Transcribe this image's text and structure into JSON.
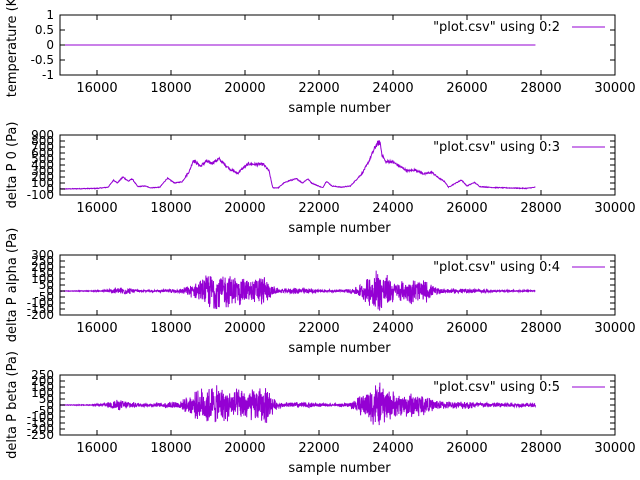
{
  "colors": {
    "series": "#9400d3",
    "frame": "#000000",
    "background": "#ffffff"
  },
  "chart_data": [
    {
      "type": "line",
      "xlabel": "sample number",
      "ylabel": "temperature (K)",
      "xlim": [
        15000,
        30000
      ],
      "ylim": [
        -1,
        1
      ],
      "x_ticks": [
        16000,
        18000,
        20000,
        22000,
        24000,
        26000,
        28000,
        30000
      ],
      "y_ticks": [
        -1,
        -0.5,
        0,
        0.5,
        1
      ],
      "legend_position": "top-right",
      "grid": false,
      "series": [
        {
          "name": "\"plot.csv\" using 0:2",
          "points": [
            [
              15000,
              0
            ],
            [
              27850,
              0
            ]
          ]
        }
      ]
    },
    {
      "type": "line",
      "xlabel": "sample number",
      "ylabel": "delta P 0 (Pa)",
      "xlim": [
        15000,
        30000
      ],
      "ylim": [
        -100,
        900
      ],
      "x_ticks": [
        16000,
        18000,
        20000,
        22000,
        24000,
        26000,
        28000,
        30000
      ],
      "y_ticks": [
        -100,
        0,
        100,
        200,
        300,
        400,
        500,
        600,
        700,
        800,
        900
      ],
      "legend_position": "top-right",
      "grid": false,
      "series": [
        {
          "name": "\"plot.csv\" using 0:3",
          "points": [
            [
              15000,
              0
            ],
            [
              16000,
              10
            ],
            [
              16300,
              30
            ],
            [
              16450,
              150
            ],
            [
              16550,
              100
            ],
            [
              16700,
              200
            ],
            [
              16850,
              130
            ],
            [
              16950,
              170
            ],
            [
              17100,
              40
            ],
            [
              17300,
              50
            ],
            [
              17450,
              20
            ],
            [
              17700,
              30
            ],
            [
              17900,
              180
            ],
            [
              18100,
              100
            ],
            [
              18300,
              120
            ],
            [
              18500,
              300
            ],
            [
              18600,
              480
            ],
            [
              18800,
              380
            ],
            [
              18950,
              460
            ],
            [
              19100,
              430
            ],
            [
              19300,
              500
            ],
            [
              19450,
              410
            ],
            [
              19600,
              330
            ],
            [
              19800,
              260
            ],
            [
              19950,
              350
            ],
            [
              20100,
              420
            ],
            [
              20300,
              410
            ],
            [
              20500,
              410
            ],
            [
              20650,
              300
            ],
            [
              20750,
              20
            ],
            [
              20900,
              20
            ],
            [
              21050,
              100
            ],
            [
              21200,
              140
            ],
            [
              21400,
              170
            ],
            [
              21550,
              100
            ],
            [
              21700,
              170
            ],
            [
              21800,
              100
            ],
            [
              21950,
              60
            ],
            [
              22100,
              20
            ],
            [
              22200,
              130
            ],
            [
              22350,
              50
            ],
            [
              22600,
              30
            ],
            [
              22850,
              50
            ],
            [
              23000,
              150
            ],
            [
              23150,
              250
            ],
            [
              23300,
              400
            ],
            [
              23450,
              600
            ],
            [
              23550,
              740
            ],
            [
              23650,
              780
            ],
            [
              23700,
              580
            ],
            [
              23800,
              450
            ],
            [
              23950,
              460
            ],
            [
              24050,
              430
            ],
            [
              24200,
              370
            ],
            [
              24400,
              300
            ],
            [
              24600,
              320
            ],
            [
              24850,
              250
            ],
            [
              25050,
              280
            ],
            [
              25200,
              200
            ],
            [
              25400,
              120
            ],
            [
              25500,
              30
            ],
            [
              25700,
              100
            ],
            [
              25850,
              150
            ],
            [
              26000,
              50
            ],
            [
              26200,
              110
            ],
            [
              26350,
              40
            ],
            [
              26700,
              25
            ],
            [
              27000,
              20
            ],
            [
              27300,
              15
            ],
            [
              27600,
              10
            ],
            [
              27850,
              30
            ]
          ]
        }
      ]
    },
    {
      "type": "line",
      "xlabel": "sample number",
      "ylabel": "delta P alpha (Pa)",
      "xlim": [
        15000,
        30000
      ],
      "ylim": [
        -200,
        300
      ],
      "x_ticks": [
        16000,
        18000,
        20000,
        22000,
        24000,
        26000,
        28000,
        30000
      ],
      "y_ticks": [
        -200,
        -150,
        -100,
        -50,
        0,
        50,
        100,
        150,
        200,
        250,
        300
      ],
      "legend_position": "top-right",
      "grid": false,
      "series": [
        {
          "name": "\"plot.csv\" using 0:4",
          "envelope": [
            [
              15000,
              3
            ],
            [
              15800,
              3
            ],
            [
              16200,
              8
            ],
            [
              16450,
              28
            ],
            [
              16700,
              40
            ],
            [
              16950,
              22
            ],
            [
              17200,
              8
            ],
            [
              17600,
              8
            ],
            [
              17900,
              18
            ],
            [
              18200,
              15
            ],
            [
              18500,
              50
            ],
            [
              18800,
              100
            ],
            [
              19000,
              160
            ],
            [
              19200,
              190
            ],
            [
              19400,
              160
            ],
            [
              19600,
              150
            ],
            [
              19900,
              130
            ],
            [
              20200,
              110
            ],
            [
              20500,
              150
            ],
            [
              20700,
              60
            ],
            [
              20900,
              18
            ],
            [
              21200,
              25
            ],
            [
              21500,
              35
            ],
            [
              21800,
              25
            ],
            [
              22100,
              12
            ],
            [
              22500,
              10
            ],
            [
              22800,
              18
            ],
            [
              23000,
              40
            ],
            [
              23200,
              80
            ],
            [
              23400,
              160
            ],
            [
              23550,
              220
            ],
            [
              23700,
              190
            ],
            [
              23900,
              130
            ],
            [
              24100,
              80
            ],
            [
              24300,
              100
            ],
            [
              24600,
              120
            ],
            [
              24900,
              100
            ],
            [
              25100,
              40
            ],
            [
              25400,
              20
            ],
            [
              25800,
              25
            ],
            [
              26100,
              20
            ],
            [
              26500,
              15
            ],
            [
              27000,
              10
            ],
            [
              27500,
              8
            ],
            [
              27850,
              5
            ]
          ]
        }
      ]
    },
    {
      "type": "line",
      "xlabel": "sample number",
      "ylabel": "delta P beta (Pa)",
      "xlim": [
        15000,
        30000
      ],
      "ylim": [
        -250,
        250
      ],
      "x_ticks": [
        16000,
        18000,
        20000,
        22000,
        24000,
        26000,
        28000,
        30000
      ],
      "y_ticks": [
        -250,
        -200,
        -150,
        -100,
        -50,
        0,
        50,
        100,
        150,
        200,
        250
      ],
      "legend_position": "top-right",
      "grid": false,
      "series": [
        {
          "name": "\"plot.csv\" using 0:5",
          "envelope": [
            [
              15000,
              3
            ],
            [
              15800,
              3
            ],
            [
              16200,
              15
            ],
            [
              16500,
              50
            ],
            [
              16800,
              40
            ],
            [
              17000,
              25
            ],
            [
              17300,
              15
            ],
            [
              17700,
              20
            ],
            [
              18000,
              35
            ],
            [
              18300,
              45
            ],
            [
              18500,
              90
            ],
            [
              18800,
              150
            ],
            [
              19000,
              190
            ],
            [
              19300,
              170
            ],
            [
              19600,
              140
            ],
            [
              19900,
              150
            ],
            [
              20200,
              150
            ],
            [
              20400,
              160
            ],
            [
              20600,
              180
            ],
            [
              20800,
              50
            ],
            [
              21000,
              20
            ],
            [
              21400,
              30
            ],
            [
              21800,
              25
            ],
            [
              22100,
              15
            ],
            [
              22500,
              12
            ],
            [
              22800,
              25
            ],
            [
              23000,
              60
            ],
            [
              23300,
              140
            ],
            [
              23500,
              220
            ],
            [
              23700,
              190
            ],
            [
              23900,
              140
            ],
            [
              24200,
              100
            ],
            [
              24500,
              120
            ],
            [
              24800,
              110
            ],
            [
              25000,
              60
            ],
            [
              25300,
              40
            ],
            [
              25700,
              30
            ],
            [
              26000,
              40
            ],
            [
              26400,
              25
            ],
            [
              26800,
              25
            ],
            [
              27200,
              20
            ],
            [
              27600,
              18
            ],
            [
              27850,
              20
            ]
          ]
        }
      ]
    }
  ]
}
